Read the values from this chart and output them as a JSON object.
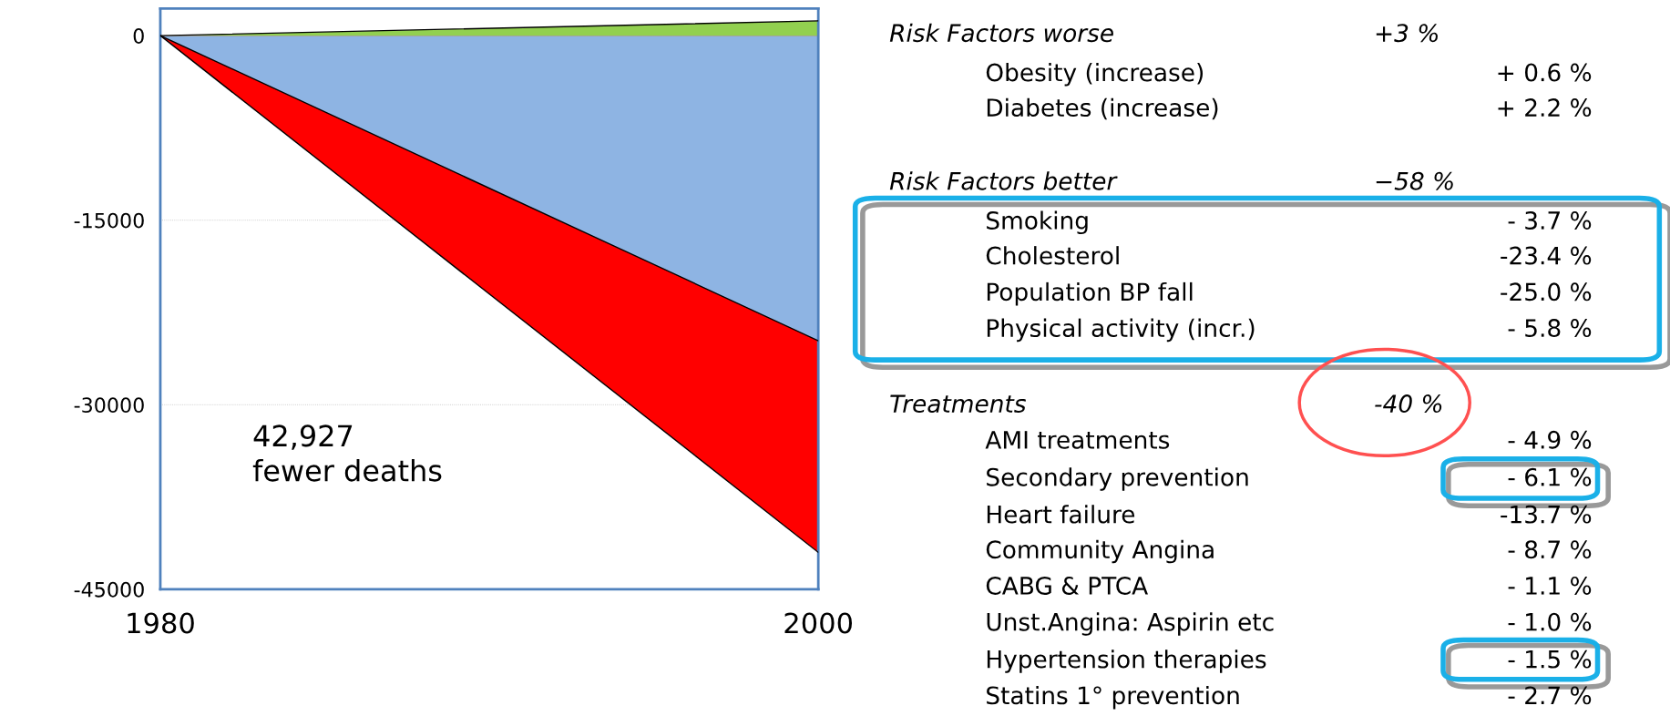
{
  "chart_data": {
    "type": "area",
    "x": [
      1980,
      2000
    ],
    "series": [
      {
        "color": "#ff0000",
        "values": [
          0,
          -42000
        ]
      },
      {
        "color": "#8eb4e3",
        "values": [
          0,
          -24800
        ]
      },
      {
        "color": "#92d050",
        "values": [
          0,
          1200
        ]
      }
    ],
    "xlim": [
      1980,
      2000
    ],
    "xticks": [
      1980,
      2000
    ],
    "ylim": [
      -45000,
      2200
    ],
    "yticks": [
      0,
      -15000,
      -30000,
      -45000
    ],
    "grid": "y",
    "annotations": [
      "42,927\nfewer deaths",
      "Risk Factors worse",
      "+3 %",
      "Obesity (increase)",
      "+ 0.6 %",
      "Diabetes (increase)",
      "+ 2.2 %",
      "Risk Factors better",
      "−58 %",
      "Smoking",
      "- 3.7 %",
      "Cholesterol",
      "-23.4 %",
      "Population BP fall",
      "-25.0 %",
      "Physical activity (incr.)",
      "- 5.8 %",
      "Treatments",
      "-40 %",
      "AMI treatments",
      "- 4.9 %",
      "Secondary prevention",
      "- 6.1 %",
      "Heart failure",
      "-13.7 %",
      "Community Angina",
      "- 8.7 %",
      "CABG & PTCA",
      "- 1.1 %",
      "Unst.Angina: Aspirin etc",
      "- 1.0 %",
      "Hypertension therapies",
      "- 1.5 %",
      "Statins 1° prevention",
      "- 2.7 %"
    ]
  }
}
